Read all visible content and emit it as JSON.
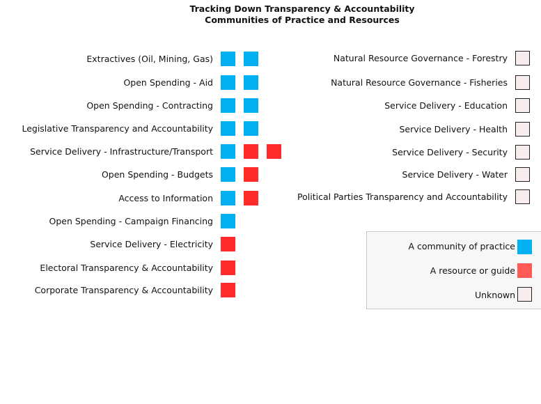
{
  "title_lines": [
    "Tracking Down Transparency & Accountability",
    "Communities of Practice and Resources"
  ],
  "colors": {
    "community": "#00b0f0",
    "resource": "#ff2a2a",
    "unknown": "#f7eded"
  },
  "left_rows": [
    {
      "label": "Extractives (Oil, Mining, Gas)",
      "items": [
        "community",
        "community"
      ]
    },
    {
      "label": "Open Spending - Aid",
      "items": [
        "community",
        "community"
      ]
    },
    {
      "label": "Open Spending - Contracting",
      "items": [
        "community",
        "community"
      ]
    },
    {
      "label": "Legislative Transparency and Accountability",
      "items": [
        "community",
        "community"
      ]
    },
    {
      "label": "Service Delivery - Infrastructure/Transport",
      "items": [
        "community",
        "resource",
        "resource"
      ]
    },
    {
      "label": "Open Spending - Budgets",
      "items": [
        "community",
        "resource"
      ]
    },
    {
      "label": "Access to Information",
      "items": [
        "community",
        "resource"
      ]
    },
    {
      "label": "Open Spending - Campaign Financing",
      "items": [
        "community"
      ]
    },
    {
      "label": "Service Delivery - Electricity",
      "items": [
        "resource"
      ]
    },
    {
      "label": "Electoral Transparency & Accountability",
      "items": [
        "resource"
      ]
    },
    {
      "label": "Corporate Transparency & Accountability",
      "items": [
        "resource"
      ]
    }
  ],
  "right_rows": [
    {
      "label": "Natural Resource Governance - Forestry",
      "items": [
        "unknown"
      ]
    },
    {
      "label": "Natural Resource Governance - Fisheries",
      "items": [
        "unknown"
      ]
    },
    {
      "label": "Service Delivery - Education",
      "items": [
        "unknown"
      ]
    },
    {
      "label": "Service Delivery - Health",
      "items": [
        "unknown"
      ]
    },
    {
      "label": "Service Delivery - Security",
      "items": [
        "unknown"
      ]
    },
    {
      "label": "Service Delivery - Water",
      "items": [
        "unknown"
      ]
    },
    {
      "label": "Political Parties Transparency and Accountability",
      "items": [
        "unknown"
      ]
    }
  ],
  "legend": [
    {
      "label": "A community of practice",
      "type": "community"
    },
    {
      "label": "A resource or guide",
      "type": "resource"
    },
    {
      "label": "Unknown",
      "type": "unknown"
    }
  ]
}
